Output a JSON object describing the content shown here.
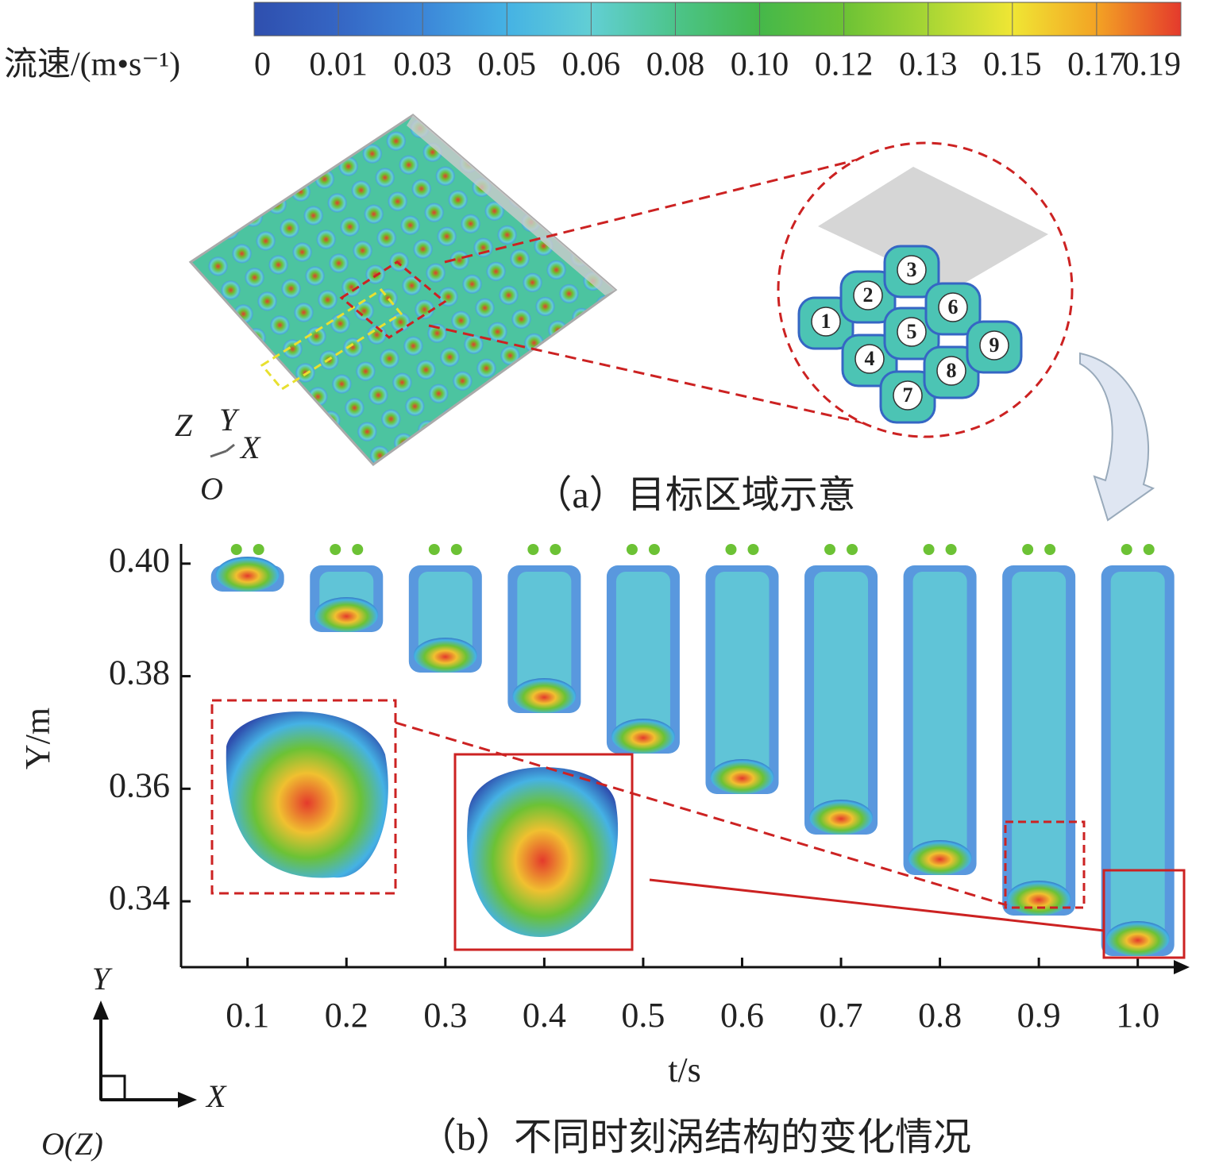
{
  "chart_data": [
    {
      "type": "colorbar",
      "title": "流速/(m•s⁻¹)",
      "levels": [
        0,
        0.01,
        0.03,
        0.05,
        0.06,
        0.08,
        {
          "value": 0.1,
          "label": "0.10"
        },
        0.12,
        0.13,
        0.15,
        0.17,
        0.19
      ],
      "colors": [
        "#2f4fae",
        "#3566c4",
        "#3c86d8",
        "#45b2e4",
        "#62cfd4",
        "#4cc48a",
        "#45b84a",
        "#6cc235",
        "#a8d634",
        "#f0e634",
        "#f3a324",
        "#e43a2c"
      ]
    },
    {
      "type": "image-axes",
      "title": "（b）不同时刻涡结构的变化情况",
      "xlabel": "t/s",
      "ylabel": "Y/m",
      "xlim": [
        0.0328,
        1.046
      ],
      "xticks": [
        0.1,
        0.2,
        0.3,
        0.4,
        0.5,
        0.6,
        0.7,
        0.8,
        0.9,
        {
          "value": 1.0,
          "label": "1.0"
        }
      ],
      "ylim": [
        0.3283,
        0.4035
      ],
      "yticks": [
        0.34,
        0.36,
        0.38,
        {
          "value": 0.4,
          "label": "0.40"
        }
      ]
    }
  ],
  "panel_a": {
    "caption": "（a）目标区域示意",
    "axis_labels": [
      "Z",
      "Y",
      "X",
      "O"
    ],
    "zoom_labels": [
      "1",
      "2",
      "3",
      "4",
      "5",
      "6",
      "7",
      "8",
      "9"
    ]
  },
  "panel_b": {
    "axis_labels": [
      "Y",
      "X",
      "O(Z)"
    ]
  }
}
